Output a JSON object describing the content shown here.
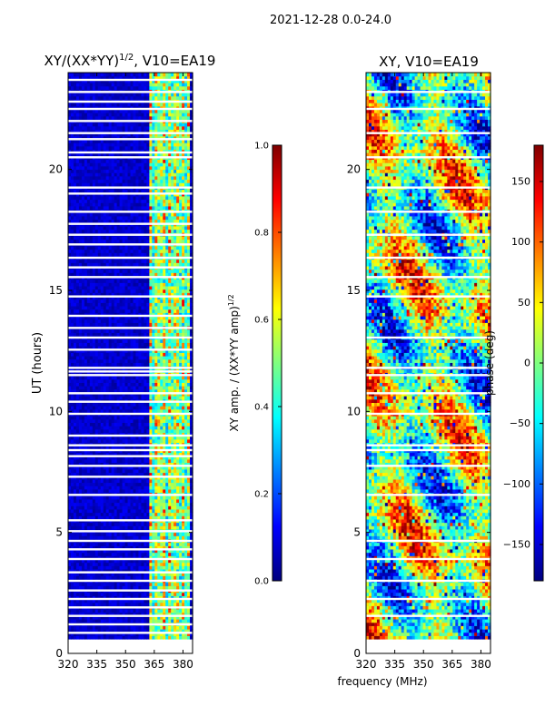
{
  "figure_title": "2021-12-28 0.0-24.0",
  "shared_xlabel": "frequency (MHz)",
  "chart_data": [
    {
      "type": "heatmap",
      "title_main": "XY/(XX*YY)",
      "title_exp": "1/2",
      "title_suffix": ", V10=EA19",
      "xlabel": "",
      "ylabel": "UT (hours)",
      "xlim": [
        320,
        385
      ],
      "ylim": [
        0,
        24
      ],
      "xticks": [
        320,
        335,
        350,
        365,
        380
      ],
      "yticks": [
        0,
        5,
        10,
        15,
        20
      ],
      "data_ut_range": [
        0.6,
        24.0
      ],
      "hot_band_mhz": [
        362,
        383
      ],
      "gap_hours": [
        0.85,
        1.2,
        1.55,
        1.9,
        2.25,
        2.6,
        3.0,
        3.35,
        3.9,
        4.3,
        4.65,
        5.05,
        5.5,
        6.55,
        7.3,
        7.75,
        8.15,
        8.4,
        8.6,
        9.0,
        9.9,
        10.4,
        10.75,
        11.5,
        11.65,
        11.8,
        12.55,
        13.05,
        13.45,
        13.95,
        14.75,
        15.55,
        15.95,
        16.35,
        16.9,
        17.3,
        17.75,
        18.25,
        19.0,
        19.25,
        20.5,
        20.7,
        21.25,
        21.5,
        22.0,
        22.5,
        22.8,
        23.2,
        23.7
      ],
      "colorbar": {
        "label_main": "XY amp. / (XX*YY amp)",
        "label_exp": "1/2",
        "min": 0.0,
        "max": 1.0,
        "ticks": [
          "0.0",
          "0.2",
          "0.4",
          "0.6",
          "0.8",
          "1.0"
        ],
        "tick_values": [
          0.0,
          0.2,
          0.4,
          0.6,
          0.8,
          1.0
        ]
      }
    },
    {
      "type": "heatmap",
      "title": "XY, V10=EA19",
      "xlabel": "frequency (MHz)",
      "ylabel": "",
      "xlim": [
        320,
        385
      ],
      "ylim": [
        0,
        24
      ],
      "xticks": [
        320,
        335,
        350,
        365,
        380
      ],
      "yticks": [
        0,
        5,
        10,
        15,
        20
      ],
      "data_ut_range": [
        0.6,
        24.0
      ],
      "gap_hours": [
        1.55,
        2.25,
        3.0,
        3.9,
        4.65,
        6.55,
        7.75,
        8.4,
        8.6,
        9.9,
        10.75,
        11.5,
        11.8,
        13.05,
        14.75,
        15.55,
        16.35,
        17.3,
        18.25,
        19.25,
        20.5,
        21.5,
        22.5,
        23.2
      ],
      "colorbar": {
        "label": "phase (deg)",
        "min": -180,
        "max": 180,
        "ticks": [
          "−150",
          "−100",
          "−50",
          "0",
          "50",
          "100",
          "150"
        ],
        "tick_values": [
          -150,
          -100,
          -50,
          0,
          50,
          100,
          150
        ]
      }
    }
  ]
}
